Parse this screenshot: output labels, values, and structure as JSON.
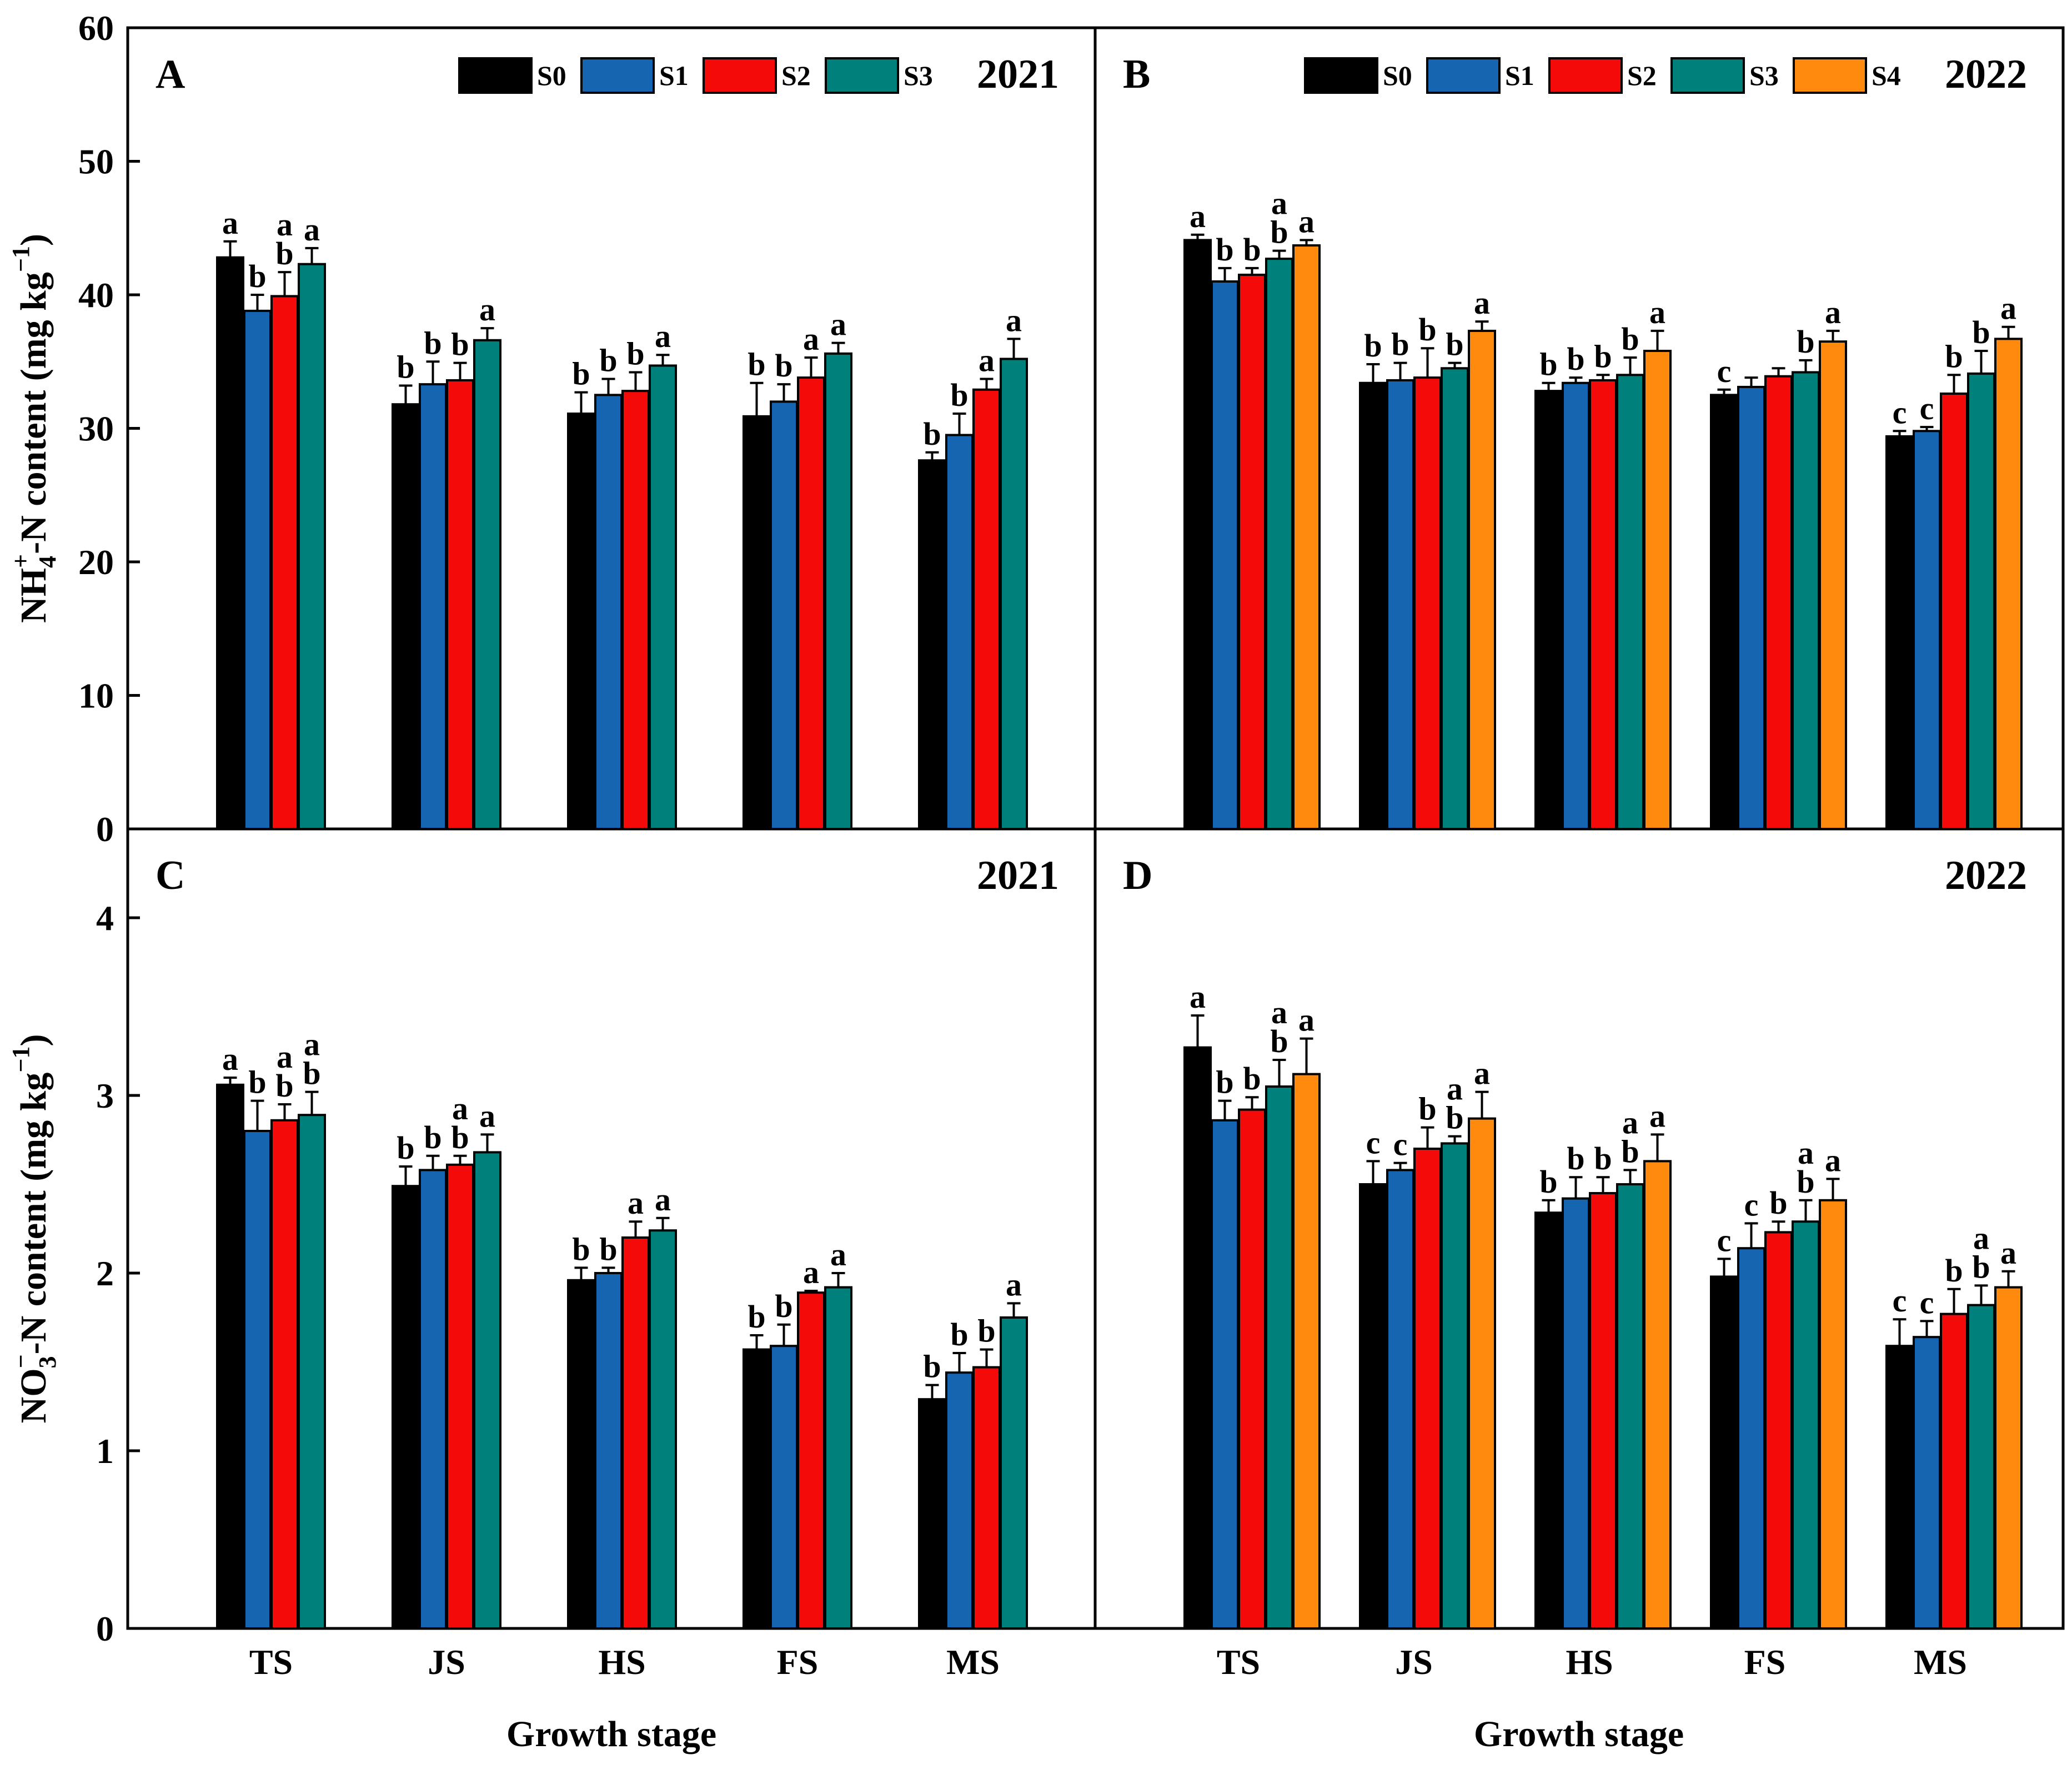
{
  "x_title": "Growth stage",
  "categories": [
    "TS",
    "JS",
    "HS",
    "FS",
    "MS"
  ],
  "colors": {
    "S0": "#000000",
    "S1": "#1565b0",
    "S2": "#f50a0a",
    "S3": "#00807a",
    "S4": "#ff8a0d"
  },
  "rows": [
    {
      "ylabel_parts": [
        "NH",
        "4",
        "+",
        "-N content (mg kg",
        "−1",
        ")"
      ],
      "ylim": [
        0,
        60
      ],
      "yticks": [
        "0",
        "10",
        "20",
        "30",
        "40",
        "50",
        "60"
      ]
    },
    {
      "ylabel_parts": [
        "NO",
        "3",
        "−",
        "-N content (mg kg",
        "−1",
        ")"
      ],
      "ylim": [
        0,
        4.5
      ],
      "yticks": [
        "0",
        "1",
        "2",
        "3",
        "4"
      ]
    }
  ],
  "chart_data": [
    {
      "panel": "A",
      "year": "2021",
      "type": "bar",
      "ylabel": "NH4+-N content (mg kg−1)",
      "xlabel": "Growth stage",
      "ylim": [
        0,
        60
      ],
      "categories": [
        "TS",
        "JS",
        "HS",
        "FS",
        "MS"
      ],
      "legend": "top",
      "grid": false,
      "series": [
        {
          "name": "S0",
          "values": [
            42.8,
            31.8,
            31.1,
            30.9,
            27.6
          ],
          "errors": [
            1.2,
            1.4,
            1.6,
            2.5,
            0.6
          ],
          "letters": [
            "a",
            "b",
            "b",
            "b",
            "b"
          ]
        },
        {
          "name": "S1",
          "values": [
            38.8,
            33.3,
            32.5,
            32.0,
            29.5
          ],
          "errors": [
            1.2,
            1.7,
            1.2,
            1.3,
            1.6
          ],
          "letters": [
            "b",
            "b",
            "b",
            "b",
            "b"
          ]
        },
        {
          "name": "S2",
          "values": [
            39.9,
            33.6,
            32.8,
            33.8,
            32.9
          ],
          "errors": [
            1.8,
            1.3,
            1.4,
            1.5,
            0.8
          ],
          "letters": [
            "ab",
            "b",
            "b",
            "a",
            "a"
          ]
        },
        {
          "name": "S3",
          "values": [
            42.3,
            36.6,
            34.7,
            35.6,
            35.2
          ],
          "errors": [
            1.2,
            0.9,
            0.8,
            0.8,
            1.5
          ],
          "letters": [
            "a",
            "a",
            "a",
            "a",
            "a"
          ]
        }
      ]
    },
    {
      "panel": "B",
      "year": "2022",
      "type": "bar",
      "ylabel": "NH4+-N content (mg kg−1)",
      "xlabel": "Growth stage",
      "ylim": [
        0,
        60
      ],
      "categories": [
        "TS",
        "JS",
        "HS",
        "FS",
        "MS"
      ],
      "legend": "top",
      "grid": false,
      "series": [
        {
          "name": "S0",
          "values": [
            44.1,
            33.4,
            32.8,
            32.5,
            29.4
          ],
          "errors": [
            0.4,
            1.4,
            0.6,
            0.4,
            0.4
          ],
          "letters": [
            "a",
            "b",
            "b",
            "c",
            "c"
          ]
        },
        {
          "name": "S1",
          "values": [
            41.0,
            33.6,
            33.4,
            33.1,
            29.8
          ],
          "errors": [
            1.0,
            1.3,
            0.4,
            0.7,
            0.3
          ],
          "letters": [
            "b",
            "b",
            "b",
            "",
            "c"
          ]
        },
        {
          "name": "S2",
          "values": [
            41.5,
            33.8,
            33.6,
            33.9,
            32.6
          ],
          "errors": [
            0.5,
            2.2,
            0.4,
            0.6,
            1.4
          ],
          "letters": [
            "b",
            "b",
            "b",
            "",
            "b"
          ]
        },
        {
          "name": "S3",
          "values": [
            42.7,
            34.5,
            34.0,
            34.2,
            34.1
          ],
          "errors": [
            0.6,
            0.4,
            1.3,
            0.9,
            1.7
          ],
          "letters": [
            "ab",
            "b",
            "b",
            "b",
            "b"
          ]
        },
        {
          "name": "S4",
          "values": [
            43.7,
            37.3,
            35.8,
            36.5,
            36.7
          ],
          "errors": [
            0.4,
            0.7,
            1.5,
            0.8,
            0.9
          ],
          "letters": [
            "a",
            "a",
            "a",
            "a",
            "a"
          ]
        }
      ]
    },
    {
      "panel": "C",
      "year": "2021",
      "type": "bar",
      "ylabel": "NO3−-N content (mg kg−1)",
      "xlabel": "Growth stage",
      "ylim": [
        0,
        4.5
      ],
      "categories": [
        "TS",
        "JS",
        "HS",
        "FS",
        "MS"
      ],
      "legend": "none",
      "grid": false,
      "series": [
        {
          "name": "S0",
          "values": [
            3.06,
            2.49,
            1.96,
            1.57,
            1.29
          ],
          "errors": [
            0.04,
            0.11,
            0.07,
            0.08,
            0.08
          ],
          "letters": [
            "a",
            "b",
            "b",
            "b",
            "b"
          ]
        },
        {
          "name": "S1",
          "values": [
            2.8,
            2.58,
            2.0,
            1.59,
            1.44
          ],
          "errors": [
            0.17,
            0.08,
            0.03,
            0.12,
            0.11
          ],
          "letters": [
            "b",
            "b",
            "b",
            "b",
            "b"
          ]
        },
        {
          "name": "S2",
          "values": [
            2.86,
            2.61,
            2.2,
            1.89,
            1.47
          ],
          "errors": [
            0.09,
            0.05,
            0.09,
            0.01,
            0.1
          ],
          "letters": [
            "ab",
            "ab",
            "a",
            "a",
            "b"
          ]
        },
        {
          "name": "S3",
          "values": [
            2.89,
            2.68,
            2.24,
            1.92,
            1.75
          ],
          "errors": [
            0.13,
            0.1,
            0.07,
            0.08,
            0.08
          ],
          "letters": [
            "ab",
            "a",
            "a",
            "a",
            "a"
          ]
        }
      ]
    },
    {
      "panel": "D",
      "year": "2022",
      "type": "bar",
      "ylabel": "NO3−-N content (mg kg−1)",
      "xlabel": "Growth stage",
      "ylim": [
        0,
        4.5
      ],
      "categories": [
        "TS",
        "JS",
        "HS",
        "FS",
        "MS"
      ],
      "legend": "none",
      "grid": false,
      "series": [
        {
          "name": "S0",
          "values": [
            3.27,
            2.5,
            2.34,
            1.98,
            1.59
          ],
          "errors": [
            0.18,
            0.13,
            0.07,
            0.1,
            0.15
          ],
          "letters": [
            "a",
            "c",
            "b",
            "c",
            "c"
          ]
        },
        {
          "name": "S1",
          "values": [
            2.86,
            2.58,
            2.42,
            2.14,
            1.64
          ],
          "errors": [
            0.11,
            0.04,
            0.12,
            0.14,
            0.09
          ],
          "letters": [
            "b",
            "c",
            "b",
            "c",
            "c"
          ]
        },
        {
          "name": "S2",
          "values": [
            2.92,
            2.7,
            2.45,
            2.23,
            1.77
          ],
          "errors": [
            0.07,
            0.12,
            0.09,
            0.06,
            0.14
          ],
          "letters": [
            "b",
            "b",
            "b",
            "b",
            "b"
          ]
        },
        {
          "name": "S3",
          "values": [
            3.05,
            2.73,
            2.5,
            2.29,
            1.82
          ],
          "errors": [
            0.15,
            0.04,
            0.08,
            0.12,
            0.11
          ],
          "letters": [
            "ab",
            "ab",
            "ab",
            "ab",
            "ab"
          ]
        },
        {
          "name": "S4",
          "values": [
            3.12,
            2.87,
            2.63,
            2.41,
            1.92
          ],
          "errors": [
            0.2,
            0.15,
            0.15,
            0.12,
            0.09
          ],
          "letters": [
            "a",
            "a",
            "a",
            "a",
            "a"
          ]
        }
      ]
    }
  ]
}
